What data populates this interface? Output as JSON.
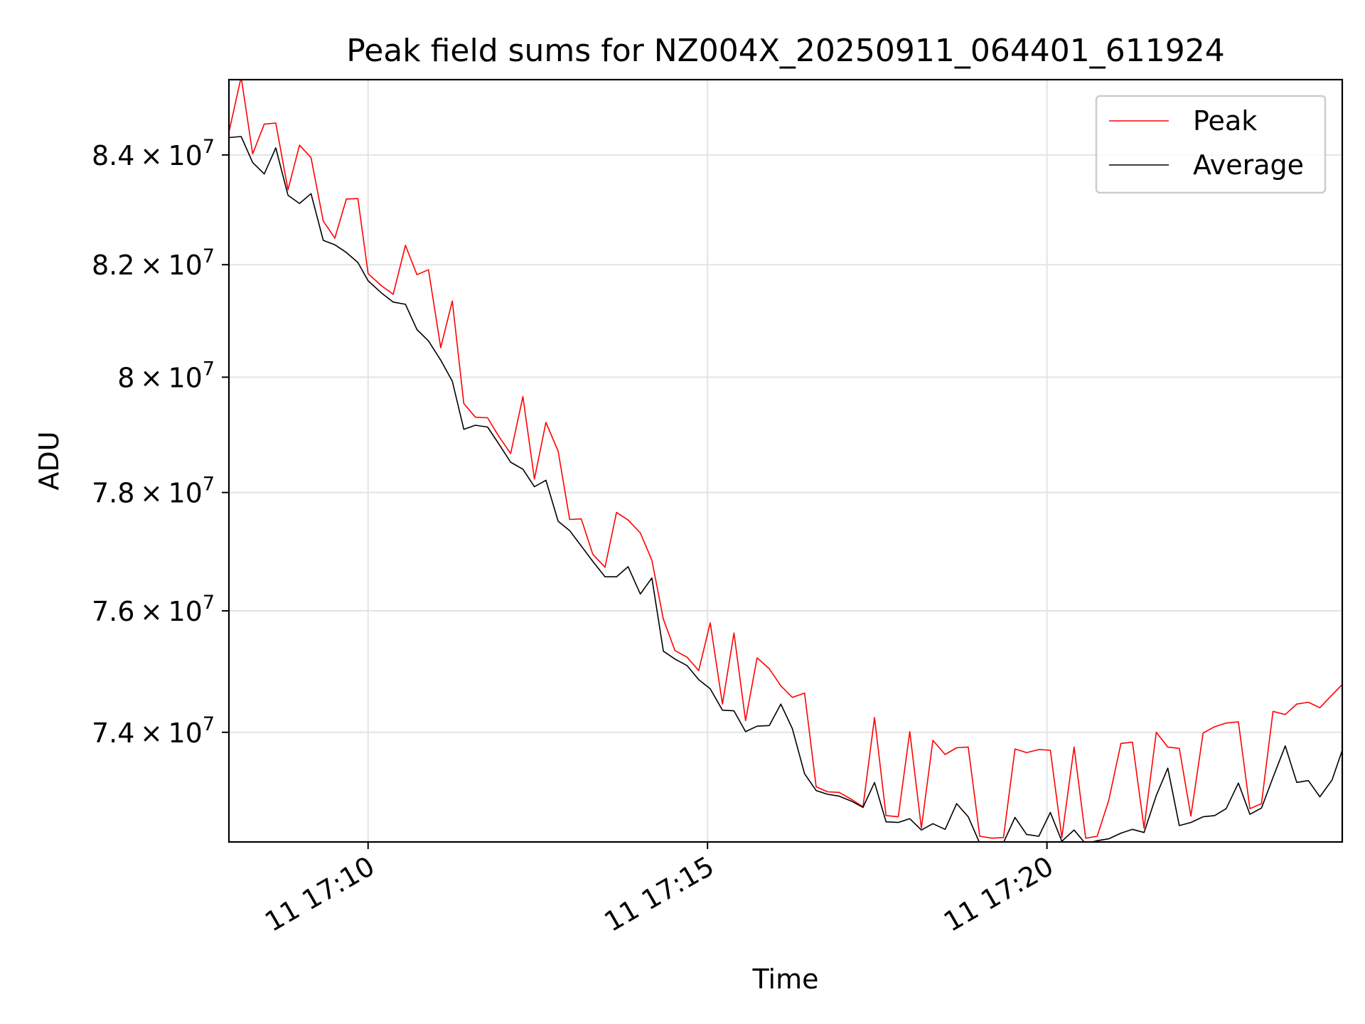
{
  "chart_data": {
    "type": "line",
    "title": "Peak field sums for NZ004X_20250911_064401_611924",
    "xlabel": "Time",
    "ylabel": "ADU",
    "y_scale": "log",
    "grid": true,
    "legend_position": "upper right",
    "x_tick_labels": [
      "11 17:10",
      "11 17:15",
      "11 17:20"
    ],
    "x_ticks_minutes": [
      10,
      15,
      20
    ],
    "xlim_minutes": [
      7.95,
      24.35
    ],
    "ylim": [
      72240000,
      85400000
    ],
    "y_ticks": [
      {
        "value": 74000000,
        "mantissa": "7.4"
      },
      {
        "value": 76000000,
        "mantissa": "7.6"
      },
      {
        "value": 78000000,
        "mantissa": "7.8"
      },
      {
        "value": 80000000,
        "mantissa": "8"
      },
      {
        "value": 82000000,
        "mantissa": "8.2"
      },
      {
        "value": 84000000,
        "mantissa": "8.4"
      }
    ],
    "y_tick_base": "10",
    "y_tick_exponent": "7",
    "x_minutes": [
      7.95,
      8.13,
      8.3,
      8.47,
      8.64,
      8.82,
      8.99,
      9.16,
      9.34,
      9.51,
      9.68,
      9.85,
      10.0,
      10.2,
      10.37,
      10.55,
      10.72,
      10.89,
      11.07,
      11.24,
      11.41,
      11.58,
      11.76,
      11.93,
      12.1,
      12.28,
      12.45,
      12.62,
      12.8,
      12.97,
      13.14,
      13.31,
      13.49,
      13.66,
      13.83,
      14.01,
      14.18,
      14.35,
      14.52,
      14.7,
      14.87,
      15.04,
      15.22,
      15.39,
      15.56,
      15.73,
      15.91,
      16.08,
      16.25,
      16.43,
      16.6,
      16.77,
      16.94,
      17.12,
      17.29,
      17.46,
      17.63,
      17.81,
      17.98,
      18.15,
      18.32,
      18.5,
      18.67,
      18.84,
      19.01,
      19.19,
      19.36,
      19.53,
      19.7,
      19.88,
      20.05,
      20.22,
      20.4,
      20.57,
      20.74,
      20.91,
      21.09,
      21.26,
      21.43,
      21.61,
      21.78,
      21.95,
      22.12,
      22.3,
      22.47,
      22.64,
      22.82,
      22.99,
      23.16,
      23.33,
      23.51,
      23.68,
      23.85,
      24.02,
      24.2,
      24.35
    ],
    "series": [
      {
        "name": "Peak",
        "color": "#ff0000",
        "values": [
          84420000,
          85450000,
          84020000,
          84570000,
          84590000,
          83360000,
          84180000,
          83950000,
          82790000,
          82480000,
          83190000,
          83200000,
          81840000,
          81620000,
          81470000,
          82350000,
          81820000,
          81910000,
          80520000,
          81350000,
          79540000,
          79300000,
          79290000,
          78960000,
          78670000,
          79660000,
          78230000,
          79210000,
          78710000,
          77540000,
          77550000,
          76950000,
          76730000,
          77660000,
          77530000,
          77310000,
          76850000,
          75860000,
          75340000,
          75230000,
          75010000,
          75800000,
          74460000,
          75630000,
          74190000,
          75220000,
          75040000,
          74760000,
          74570000,
          74640000,
          73120000,
          73040000,
          73030000,
          72920000,
          72800000,
          74240000,
          72660000,
          72640000,
          74010000,
          72460000,
          73870000,
          73640000,
          73750000,
          73760000,
          72330000,
          72300000,
          72310000,
          73730000,
          73670000,
          73720000,
          73710000,
          72310000,
          73760000,
          72300000,
          72330000,
          72900000,
          73820000,
          73840000,
          72460000,
          74000000,
          73760000,
          73740000,
          72650000,
          73990000,
          74090000,
          74150000,
          74170000,
          72770000,
          72850000,
          74340000,
          74290000,
          74460000,
          74490000,
          74400000,
          74610000,
          74780000
        ]
      },
      {
        "name": "Average",
        "color": "#000000",
        "values": [
          84320000,
          84340000,
          83860000,
          83650000,
          84130000,
          83260000,
          83110000,
          83290000,
          82440000,
          82360000,
          82220000,
          82040000,
          81710000,
          81490000,
          81330000,
          81290000,
          80840000,
          80640000,
          80300000,
          79930000,
          79090000,
          79160000,
          79130000,
          78830000,
          78520000,
          78400000,
          78100000,
          78210000,
          77510000,
          77350000,
          77090000,
          76830000,
          76570000,
          76570000,
          76740000,
          76280000,
          76550000,
          75330000,
          75200000,
          75090000,
          74860000,
          74710000,
          74360000,
          74350000,
          74010000,
          74100000,
          74110000,
          74460000,
          74060000,
          73330000,
          73060000,
          73000000,
          72970000,
          72890000,
          72790000,
          73190000,
          72560000,
          72550000,
          72610000,
          72430000,
          72530000,
          72440000,
          72850000,
          72640000,
          72220000,
          72200000,
          72230000,
          72630000,
          72360000,
          72330000,
          72710000,
          72250000,
          72430000,
          72210000,
          72260000,
          72290000,
          72380000,
          72440000,
          72390000,
          72980000,
          73420000,
          72500000,
          72550000,
          72640000,
          72660000,
          72770000,
          73180000,
          72680000,
          72780000,
          73270000,
          73780000,
          73190000,
          73220000,
          72960000,
          73230000,
          73710000
        ]
      }
    ]
  }
}
